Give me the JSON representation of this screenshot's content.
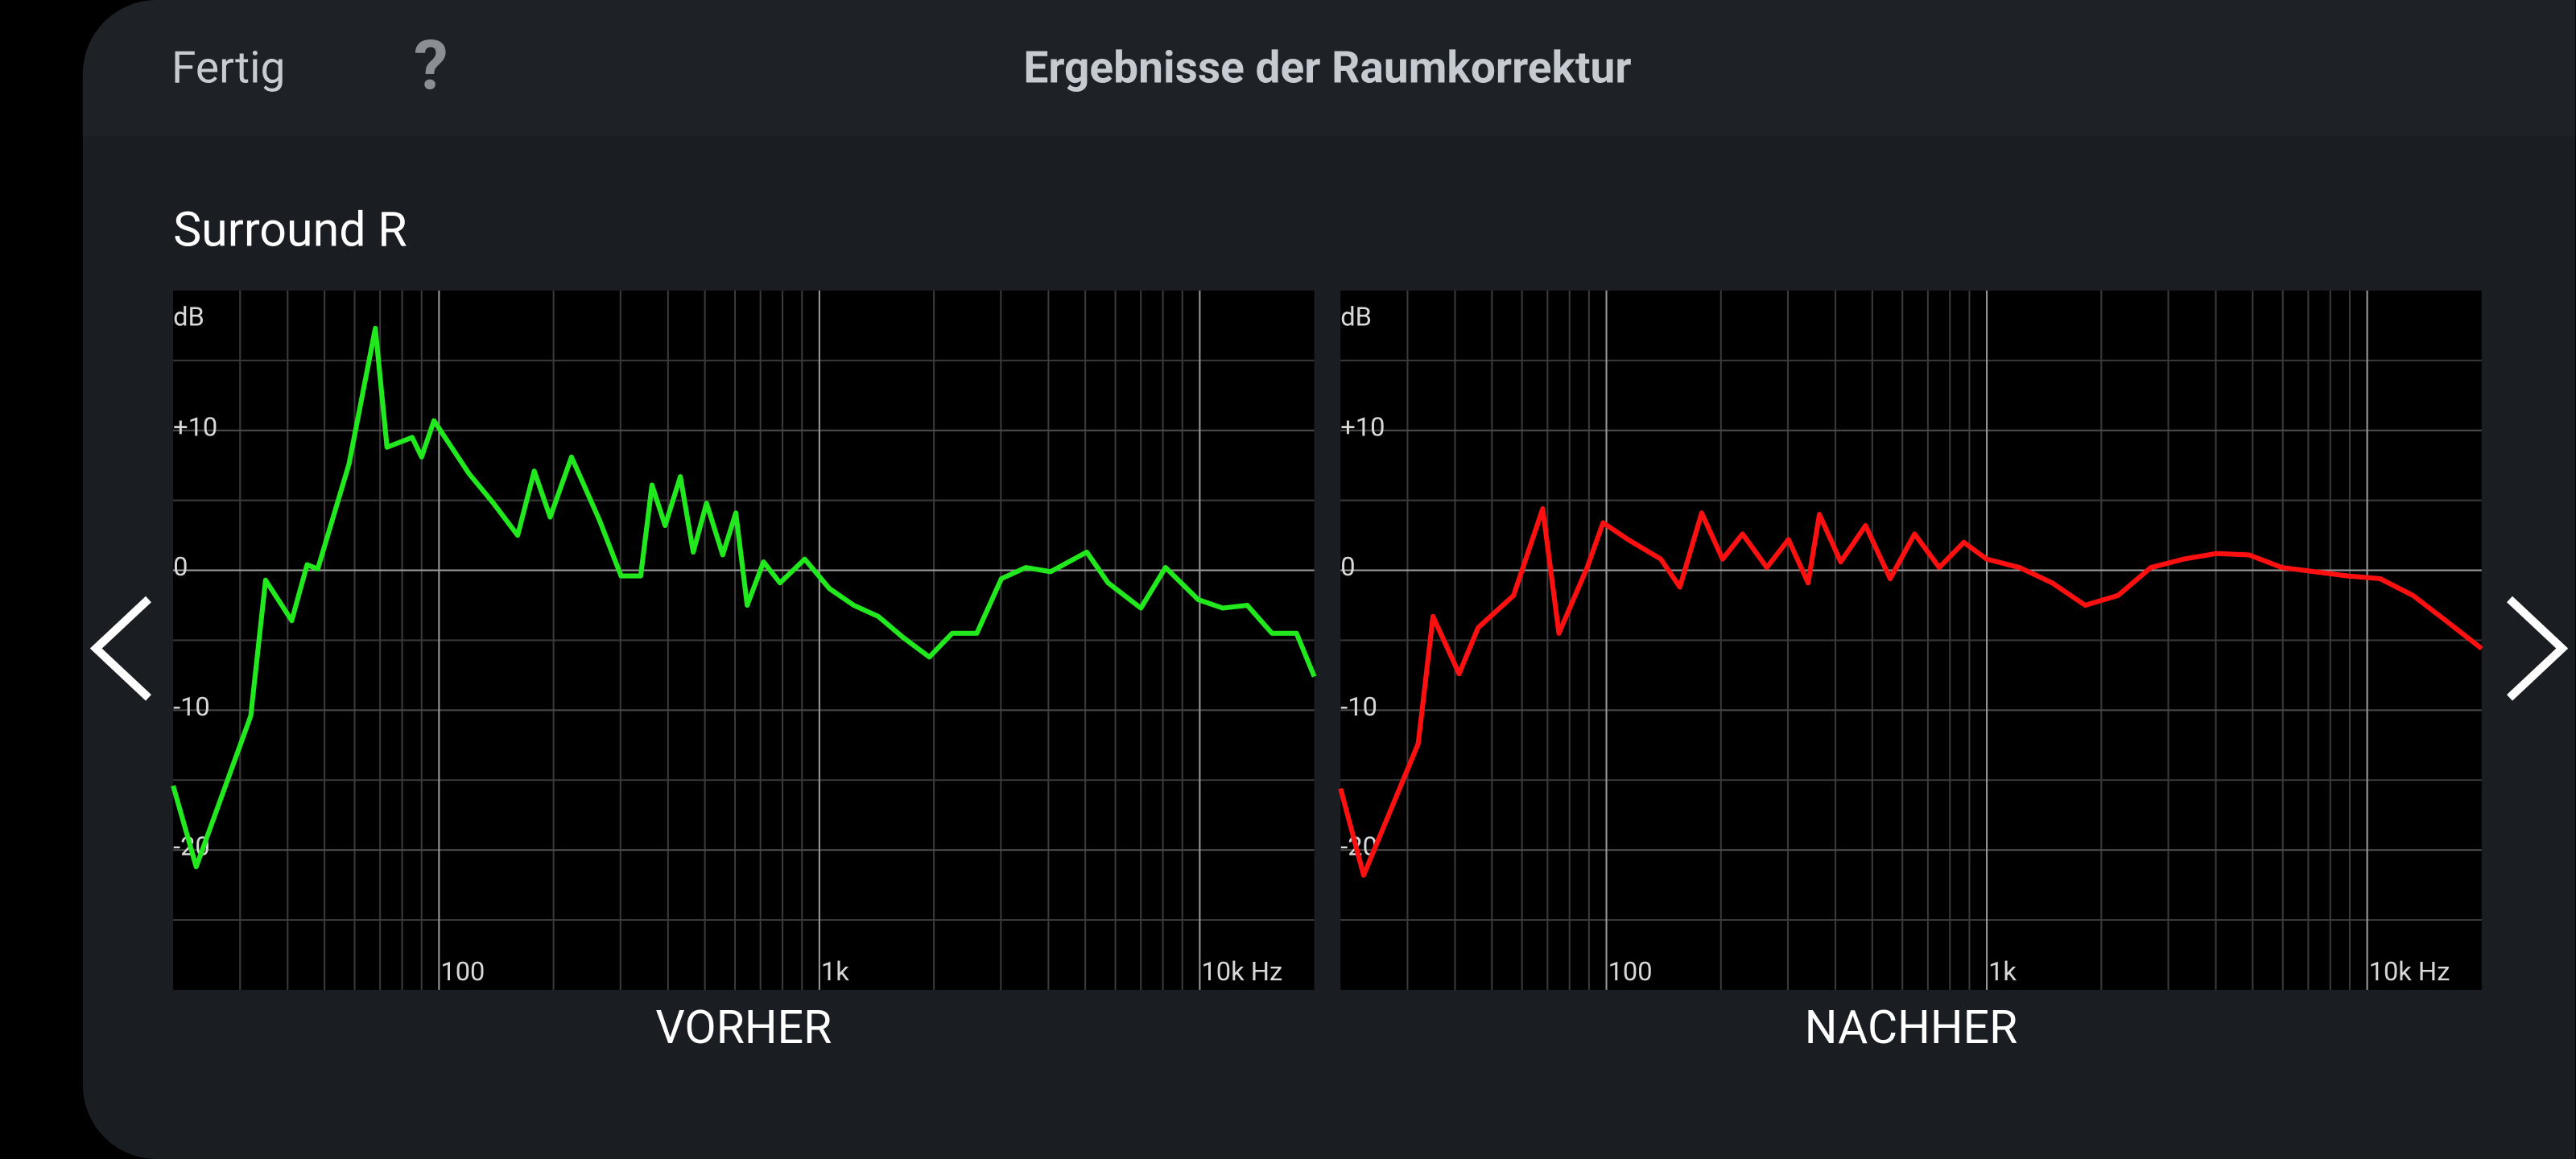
{
  "header": {
    "done": "Fertig",
    "help": "?",
    "title": "Ergebnisse der Raumkorrektur"
  },
  "section": "Surround R",
  "chart_data": [
    {
      "type": "line",
      "title": "VORHER",
      "ylabel": "dB",
      "color": "#22e81e",
      "xscale": "log",
      "xlim": [
        20,
        20000
      ],
      "ylim": [
        -30,
        20
      ],
      "xticks": [
        {
          "value": 100,
          "label": "100"
        },
        {
          "value": 1000,
          "label": "1k"
        },
        {
          "value": 10000,
          "label": "10k Hz"
        }
      ],
      "xticks_minor": [
        30,
        40,
        50,
        60,
        70,
        80,
        90,
        200,
        300,
        400,
        500,
        600,
        700,
        800,
        900,
        2000,
        3000,
        4000,
        5000,
        6000,
        7000,
        8000,
        9000
      ],
      "yticks": [
        {
          "value": 10,
          "label": "+10"
        },
        0,
        -10,
        -20
      ],
      "yticks_minor": [
        15,
        5,
        -5,
        -15,
        -25
      ],
      "x": [
        20,
        23,
        32,
        35,
        41,
        45,
        48,
        58,
        68,
        73,
        85,
        90,
        97,
        120,
        139,
        161,
        178,
        196,
        223,
        264,
        301,
        339,
        363,
        393,
        431,
        466,
        505,
        557,
        603,
        646,
        713,
        788,
        915,
        1062,
        1231,
        1429,
        1660,
        1945,
        2235,
        2594,
        3009,
        3491,
        4053,
        5047,
        5742,
        7000,
        8126,
        9910,
        11490,
        13330,
        15480,
        17960,
        20000
      ],
      "values": [
        -15.4,
        -21.2,
        -10.4,
        -0.7,
        -3.6,
        0.4,
        0.1,
        7.6,
        17.3,
        8.8,
        9.5,
        8.1,
        10.7,
        6.9,
        4.8,
        2.5,
        7.1,
        3.8,
        8.1,
        3.6,
        -0.4,
        -0.4,
        6.1,
        3.2,
        6.7,
        1.3,
        4.8,
        1.1,
        4.1,
        -2.5,
        0.6,
        -0.9,
        0.8,
        -1.3,
        -2.5,
        -3.3,
        -4.8,
        -6.2,
        -4.5,
        -4.5,
        -0.6,
        0.2,
        -0.1,
        1.3,
        -0.9,
        -2.7,
        0.2,
        -2.1,
        -2.7,
        -2.5,
        -4.5,
        -4.5,
        -7.6
      ]
    },
    {
      "type": "line",
      "title": "NACHHER",
      "ylabel": "dB",
      "color": "#ff1010",
      "xscale": "log",
      "xlim": [
        20,
        20000
      ],
      "ylim": [
        -30,
        20
      ],
      "xticks": [
        {
          "value": 100,
          "label": "100"
        },
        {
          "value": 1000,
          "label": "1k"
        },
        {
          "value": 10000,
          "label": "10k Hz"
        }
      ],
      "xticks_minor": [
        30,
        40,
        50,
        60,
        70,
        80,
        90,
        200,
        300,
        400,
        500,
        600,
        700,
        800,
        900,
        2000,
        3000,
        4000,
        5000,
        6000,
        7000,
        8000,
        9000
      ],
      "yticks": [
        {
          "value": 10,
          "label": "+10"
        },
        0,
        -10,
        -20
      ],
      "yticks_minor": [
        15,
        5,
        -5,
        -15,
        -25
      ],
      "x": [
        20,
        23,
        32,
        35,
        41,
        46,
        57,
        68,
        75,
        89,
        98,
        114,
        139,
        156,
        178,
        202,
        228,
        264,
        301,
        339,
        363,
        413,
        480,
        557,
        646,
        750,
        870,
        1000,
        1219,
        1486,
        1814,
        2213,
        2700,
        3292,
        4011,
        4894,
        5970,
        7280,
        8872,
        10818,
        13200,
        16100,
        20000
      ],
      "values": [
        -15.6,
        -21.8,
        -12.4,
        -3.3,
        -7.4,
        -4.1,
        -1.8,
        4.4,
        -4.5,
        0.2,
        3.4,
        2.2,
        0.8,
        -1.2,
        4.1,
        0.8,
        2.6,
        0.2,
        2.2,
        -0.9,
        4.0,
        0.6,
        3.2,
        -0.6,
        2.6,
        0.2,
        2.0,
        0.8,
        0.2,
        -0.9,
        -2.5,
        -1.8,
        0.2,
        0.8,
        1.2,
        1.1,
        0.2,
        -0.1,
        -0.4,
        -0.6,
        -1.8,
        -3.6,
        -5.6
      ]
    }
  ]
}
